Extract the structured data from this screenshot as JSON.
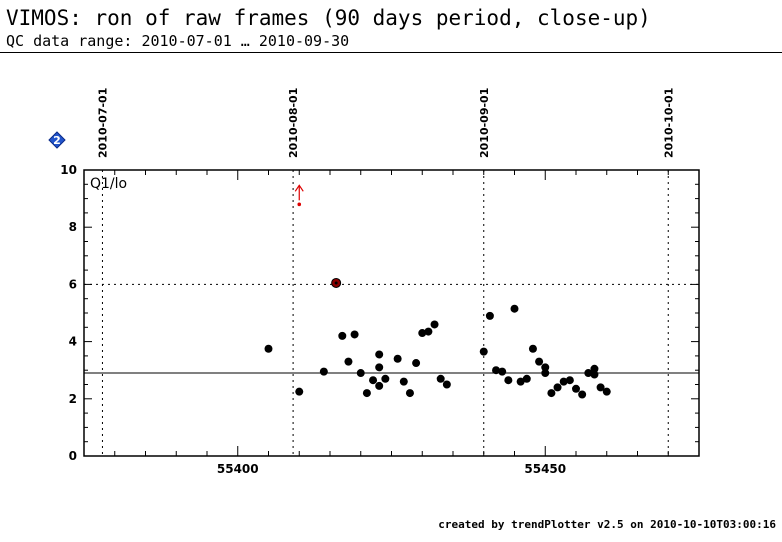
{
  "header": {
    "title": "VIMOS: ron of raw frames (90 days period, close-up)",
    "subtitle": "QC data range: 2010-07-01 … 2010-09-30"
  },
  "footer": {
    "text": "created by trendPlotter v2.5 on 2010-10-10T03:00:16"
  },
  "badge": {
    "label": "2",
    "color": "#2255cc"
  },
  "chart_data": {
    "type": "scatter",
    "panel_label": "Q1/lo",
    "xlim": [
      55375,
      55475
    ],
    "ylim": [
      0,
      10
    ],
    "x_ticks": [
      55400,
      55450
    ],
    "y_ticks": [
      0,
      2,
      4,
      6,
      8,
      10
    ],
    "date_markers": [
      {
        "x": 55378,
        "label": "2010-07-01"
      },
      {
        "x": 55409,
        "label": "2010-08-01"
      },
      {
        "x": 55440,
        "label": "2010-09-01"
      },
      {
        "x": 55470,
        "label": "2010-10-01"
      }
    ],
    "reference_line": 2.9,
    "threshold_line": 6.0,
    "grid": false,
    "points": [
      {
        "x": 55405,
        "y": 3.75
      },
      {
        "x": 55410,
        "y": 2.25
      },
      {
        "x": 55414,
        "y": 2.95
      },
      {
        "x": 55417,
        "y": 4.2
      },
      {
        "x": 55418,
        "y": 3.3
      },
      {
        "x": 55419,
        "y": 4.25
      },
      {
        "x": 55420,
        "y": 2.9
      },
      {
        "x": 55421,
        "y": 2.2
      },
      {
        "x": 55422,
        "y": 2.65
      },
      {
        "x": 55423,
        "y": 3.1
      },
      {
        "x": 55423,
        "y": 2.45
      },
      {
        "x": 55423,
        "y": 3.55
      },
      {
        "x": 55424,
        "y": 2.7
      },
      {
        "x": 55426,
        "y": 3.4
      },
      {
        "x": 55427,
        "y": 2.6
      },
      {
        "x": 55428,
        "y": 2.2
      },
      {
        "x": 55429,
        "y": 3.25
      },
      {
        "x": 55430,
        "y": 4.3
      },
      {
        "x": 55431,
        "y": 4.35
      },
      {
        "x": 55432,
        "y": 4.6
      },
      {
        "x": 55433,
        "y": 2.7
      },
      {
        "x": 55434,
        "y": 2.5
      },
      {
        "x": 55440,
        "y": 3.65
      },
      {
        "x": 55441,
        "y": 4.9
      },
      {
        "x": 55442,
        "y": 3.0
      },
      {
        "x": 55443,
        "y": 2.95
      },
      {
        "x": 55444,
        "y": 2.65
      },
      {
        "x": 55445,
        "y": 5.15
      },
      {
        "x": 55446,
        "y": 2.6
      },
      {
        "x": 55447,
        "y": 2.7
      },
      {
        "x": 55448,
        "y": 3.75
      },
      {
        "x": 55449,
        "y": 3.3
      },
      {
        "x": 55450,
        "y": 3.1
      },
      {
        "x": 55450,
        "y": 2.9
      },
      {
        "x": 55451,
        "y": 2.2
      },
      {
        "x": 55452,
        "y": 2.4
      },
      {
        "x": 55453,
        "y": 2.6
      },
      {
        "x": 55454,
        "y": 2.65
      },
      {
        "x": 55455,
        "y": 2.35
      },
      {
        "x": 55456,
        "y": 2.15
      },
      {
        "x": 55457,
        "y": 2.9
      },
      {
        "x": 55458,
        "y": 3.05
      },
      {
        "x": 55458,
        "y": 2.85
      },
      {
        "x": 55459,
        "y": 2.4
      },
      {
        "x": 55460,
        "y": 2.25
      }
    ],
    "outlier_points": [
      {
        "x": 55416,
        "y": 6.05,
        "color": "#8b0000"
      }
    ],
    "off_scale_points": [
      {
        "x": 55410,
        "y": 8.8,
        "color": "#dd0000"
      }
    ]
  }
}
